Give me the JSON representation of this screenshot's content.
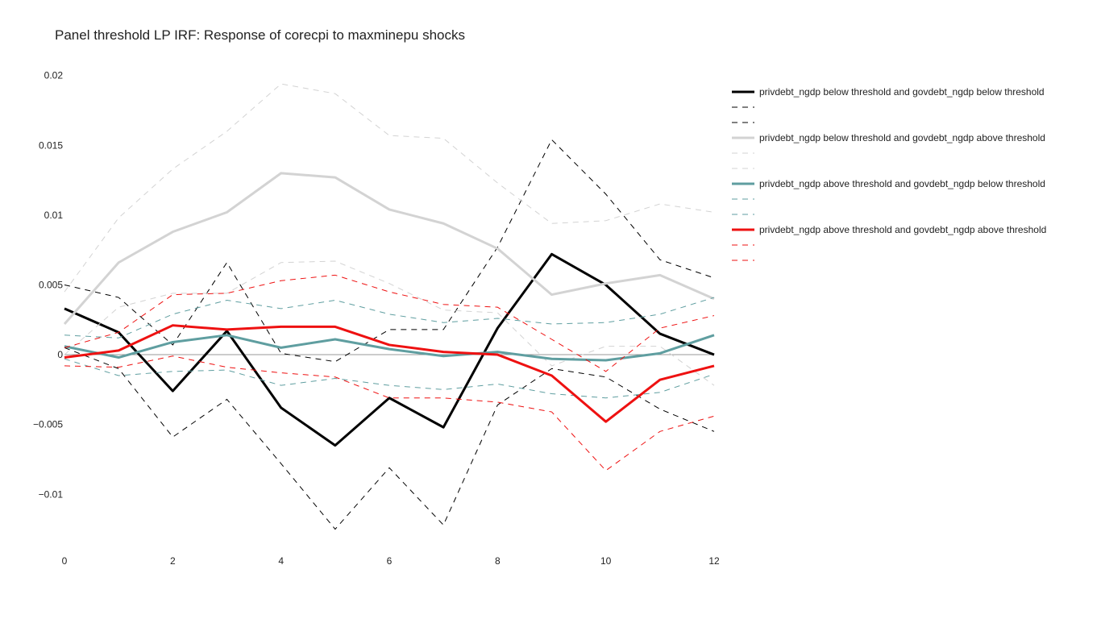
{
  "chart_data": {
    "type": "line",
    "title": "Panel threshold LP IRF: Response of corecpi to maxminepu shocks",
    "xlabel": "",
    "ylabel": "",
    "x": [
      0,
      1,
      2,
      3,
      4,
      5,
      6,
      7,
      8,
      9,
      10,
      11,
      12
    ],
    "xlim": [
      0,
      12
    ],
    "ylim": [
      -0.0142,
      0.0205
    ],
    "x_ticks": [
      0,
      2,
      4,
      6,
      8,
      10,
      12
    ],
    "x_tick_labels": [
      "0",
      "2",
      "4",
      "6",
      "8",
      "10",
      "12"
    ],
    "y_ticks": [
      0.02,
      0.015,
      0.01,
      0.005,
      0,
      -0.005,
      -0.01
    ],
    "y_tick_labels": [
      "0.02",
      "0.015",
      "0.01",
      "0.005",
      "0",
      "−0.005",
      "−0.01"
    ],
    "zero_line": true,
    "grid": false,
    "legend_position": "right",
    "series": [
      {
        "name": "privdebt_ngdp below threshold and govdebt_ngdp below threshold",
        "color": "#000000",
        "values": [
          0.0033,
          0.0016,
          -0.0026,
          0.0017,
          -0.0038,
          -0.0065,
          -0.0031,
          -0.0052,
          0.0019,
          0.0072,
          0.005,
          0.0015,
          0.0
        ],
        "lower": [
          0.0005,
          -0.001,
          -0.0059,
          -0.0032,
          -0.0078,
          -0.0125,
          -0.0081,
          -0.0122,
          -0.0036,
          -0.001,
          -0.0016,
          -0.0039,
          -0.0055
        ],
        "upper": [
          0.005,
          0.0041,
          0.0007,
          0.0066,
          0.0001,
          -0.0005,
          0.0018,
          0.0018,
          0.0077,
          0.0154,
          0.0115,
          0.0068,
          0.0055
        ]
      },
      {
        "name": "privdebt_ngdp below threshold and govdebt_ngdp above threshold",
        "color": "#d3d3d3",
        "values": [
          0.0022,
          0.0066,
          0.0088,
          0.0102,
          0.013,
          0.0127,
          0.0104,
          0.0094,
          0.0076,
          0.0043,
          0.0051,
          0.0057,
          0.004
        ],
        "lower": [
          0.0,
          0.0034,
          0.0044,
          0.0044,
          0.0066,
          0.0067,
          0.0051,
          0.0032,
          0.003,
          -0.0008,
          0.0006,
          0.0006,
          -0.0022
        ],
        "upper": [
          0.0045,
          0.0098,
          0.0133,
          0.016,
          0.0194,
          0.0187,
          0.0157,
          0.0155,
          0.0123,
          0.0094,
          0.0096,
          0.0108,
          0.0102
        ]
      },
      {
        "name": "privdebt_ngdp above threshold and govdebt_ngdp below threshold",
        "color": "#5f9ea0",
        "values": [
          0.0006,
          -0.0002,
          0.0009,
          0.0014,
          0.0005,
          0.0011,
          0.0004,
          -0.0001,
          0.0002,
          -0.0003,
          -0.0004,
          0.0001,
          0.0014
        ],
        "lower": [
          -0.0003,
          -0.0015,
          -0.0012,
          -0.0011,
          -0.0022,
          -0.0017,
          -0.0022,
          -0.0025,
          -0.0021,
          -0.0028,
          -0.0031,
          -0.0027,
          -0.0014
        ],
        "upper": [
          0.0014,
          0.0012,
          0.0029,
          0.0039,
          0.0033,
          0.0039,
          0.0029,
          0.0023,
          0.0026,
          0.0022,
          0.0023,
          0.0029,
          0.0041
        ]
      },
      {
        "name": "privdebt_ngdp above threshold and govdebt_ngdp above threshold",
        "color": "#ee1111",
        "values": [
          -0.0002,
          0.0003,
          0.0021,
          0.0018,
          0.002,
          0.002,
          0.0007,
          0.0002,
          0.0,
          -0.0015,
          -0.0048,
          -0.0018,
          -0.0008
        ],
        "lower": [
          -0.0008,
          -0.0009,
          -0.0001,
          -0.0009,
          -0.0013,
          -0.0016,
          -0.0031,
          -0.0031,
          -0.0034,
          -0.0041,
          -0.0083,
          -0.0055,
          -0.0044
        ],
        "upper": [
          0.0005,
          0.0016,
          0.0043,
          0.0044,
          0.0053,
          0.0057,
          0.0045,
          0.0036,
          0.0034,
          0.0011,
          -0.0012,
          0.0019,
          0.0028
        ]
      }
    ]
  }
}
